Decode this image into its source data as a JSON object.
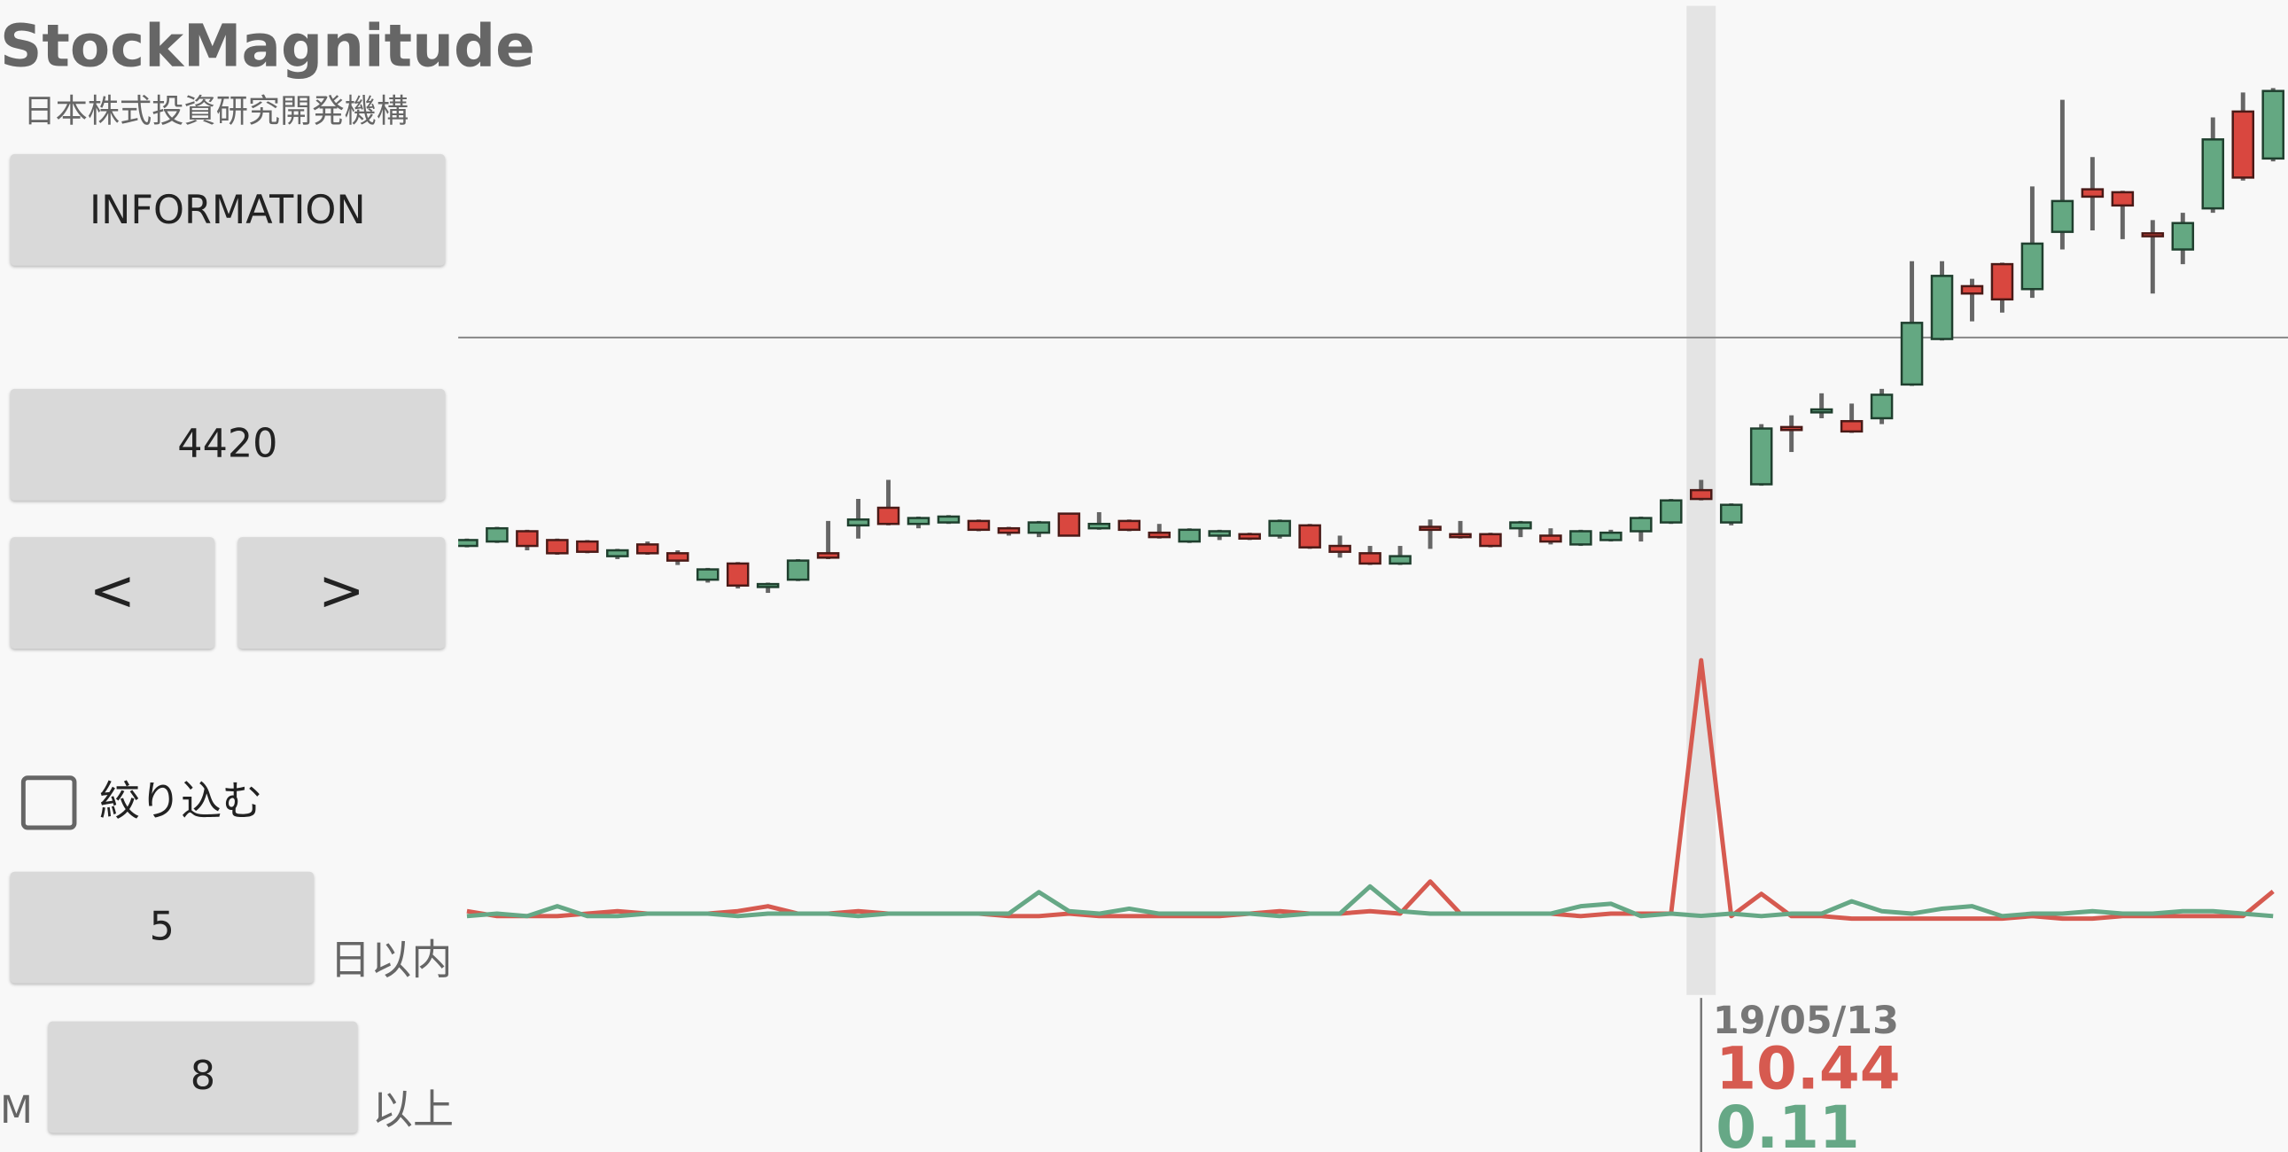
{
  "header": {
    "title": "StockMagnitude",
    "subtitle": "日本株式投資研究開発機構"
  },
  "controls": {
    "info_button": "INFORMATION",
    "code": 4420,
    "prev": "<",
    "next": ">",
    "filter_label": "絞り込む",
    "days": 5,
    "days_unit": "日以内",
    "m_label": "M",
    "min": 8,
    "min_unit": "以上"
  },
  "chart_data": [
    {
      "type": "candlestick",
      "categories": [
        null,
        null,
        null,
        null,
        null,
        null,
        null,
        null,
        null,
        null,
        null,
        null,
        null,
        null,
        null,
        null,
        null,
        null,
        null,
        null,
        null,
        null,
        null,
        null,
        null,
        null,
        null,
        null,
        null,
        null,
        null,
        null,
        null,
        null,
        null,
        null,
        null,
        null,
        null,
        null,
        null,
        "19/05/13",
        null,
        null,
        null,
        null,
        null,
        null,
        null,
        null,
        null,
        null,
        null,
        null,
        null,
        null,
        null,
        null,
        null,
        null,
        null
      ],
      "open": [
        78,
        81,
        88,
        82,
        81,
        71,
        79,
        73,
        55,
        66,
        50,
        55,
        73,
        92,
        104,
        93,
        94,
        95,
        90,
        87,
        100,
        90,
        95,
        87,
        81,
        85,
        86,
        85,
        92,
        78,
        73,
        66,
        91,
        86,
        86,
        90,
        85,
        79,
        82,
        88,
        94,
        116,
        94,
        120,
        159,
        169,
        163,
        165,
        188,
        219,
        255,
        270,
        253,
        292,
        321,
        319,
        291,
        280,
        308,
        374,
        342
      ],
      "close": [
        82,
        90,
        78,
        73,
        74,
        75,
        73,
        68,
        62,
        51,
        52,
        68,
        70,
        96,
        93,
        97,
        98,
        89,
        87,
        94,
        85,
        93,
        89,
        84,
        89,
        88,
        83,
        95,
        77,
        74,
        66,
        71,
        89,
        84,
        78,
        94,
        81,
        88,
        87,
        97,
        109,
        110,
        106,
        158,
        157,
        171,
        156,
        181,
        230,
        262,
        250,
        246,
        284,
        313,
        316,
        310,
        289,
        298,
        355,
        329,
        388
      ],
      "high": [
        83,
        91,
        89,
        83,
        82,
        76,
        81,
        75,
        63,
        67,
        53,
        69,
        95,
        110,
        123,
        98,
        99,
        96,
        91,
        95,
        100,
        101,
        96,
        93,
        90,
        89,
        87,
        96,
        93,
        85,
        78,
        78,
        96,
        95,
        87,
        95,
        90,
        89,
        89,
        98,
        110,
        123,
        107,
        161,
        167,
        182,
        175,
        185,
        272,
        272,
        260,
        271,
        323,
        382,
        343,
        320,
        300,
        305,
        370,
        387,
        390
      ],
      "low": [
        77,
        80,
        75,
        72,
        73,
        69,
        72,
        65,
        53,
        49,
        46,
        54,
        69,
        83,
        92,
        90,
        93,
        88,
        85,
        84,
        85,
        89,
        88,
        83,
        80,
        82,
        82,
        83,
        76,
        70,
        65,
        65,
        76,
        83,
        77,
        84,
        79,
        78,
        81,
        81,
        93,
        109,
        92,
        119,
        142,
        165,
        155,
        161,
        187,
        218,
        231,
        237,
        247,
        280,
        293,
        287,
        250,
        270,
        305,
        327,
        340
      ],
      "ylim": [
        0,
        450
      ],
      "reference_line": 220,
      "up_color": "#64a882",
      "down_color": "#d9473f",
      "wick_color": "#666666",
      "highlight_color": "#e4e4e4"
    },
    {
      "type": "line",
      "series": [
        {
          "color": "#d65a50",
          "values": [
            0.3,
            0.1,
            0.1,
            0.1,
            0.2,
            0.3,
            0.2,
            0.2,
            0.2,
            0.3,
            0.5,
            0.2,
            0.2,
            0.3,
            0.2,
            0.2,
            0.2,
            0.2,
            0.1,
            0.1,
            0.2,
            0.1,
            0.1,
            0.1,
            0.1,
            0.1,
            0.2,
            0.3,
            0.2,
            0.2,
            0.3,
            0.2,
            1.5,
            0.2,
            0.2,
            0.2,
            0.2,
            0.1,
            0.2,
            0.2,
            0.2,
            10.44,
            0.1,
            1.0,
            0.1,
            0.1,
            0.0,
            0.0,
            0.0,
            0.0,
            0.0,
            0.0,
            0.1,
            0.0,
            0.0,
            0.1,
            0.1,
            0.1,
            0.1,
            0.1,
            1.1
          ]
        },
        {
          "color": "#66a886",
          "values": [
            0.1,
            0.2,
            0.1,
            0.5,
            0.1,
            0.1,
            0.2,
            0.2,
            0.2,
            0.1,
            0.2,
            0.2,
            0.2,
            0.1,
            0.2,
            0.2,
            0.2,
            0.2,
            0.2,
            1.07,
            0.3,
            0.2,
            0.4,
            0.2,
            0.2,
            0.2,
            0.2,
            0.1,
            0.2,
            0.2,
            1.3,
            0.3,
            0.2,
            0.2,
            0.2,
            0.2,
            0.2,
            0.5,
            0.6,
            0.1,
            0.2,
            0.11,
            0.2,
            0.1,
            0.2,
            0.2,
            0.7,
            0.3,
            0.2,
            0.4,
            0.5,
            0.1,
            0.2,
            0.2,
            0.3,
            0.2,
            0.2,
            0.3,
            0.3,
            0.2,
            0.1
          ]
        }
      ],
      "ylim": [
        -0.24,
        11.03
      ]
    }
  ]
}
